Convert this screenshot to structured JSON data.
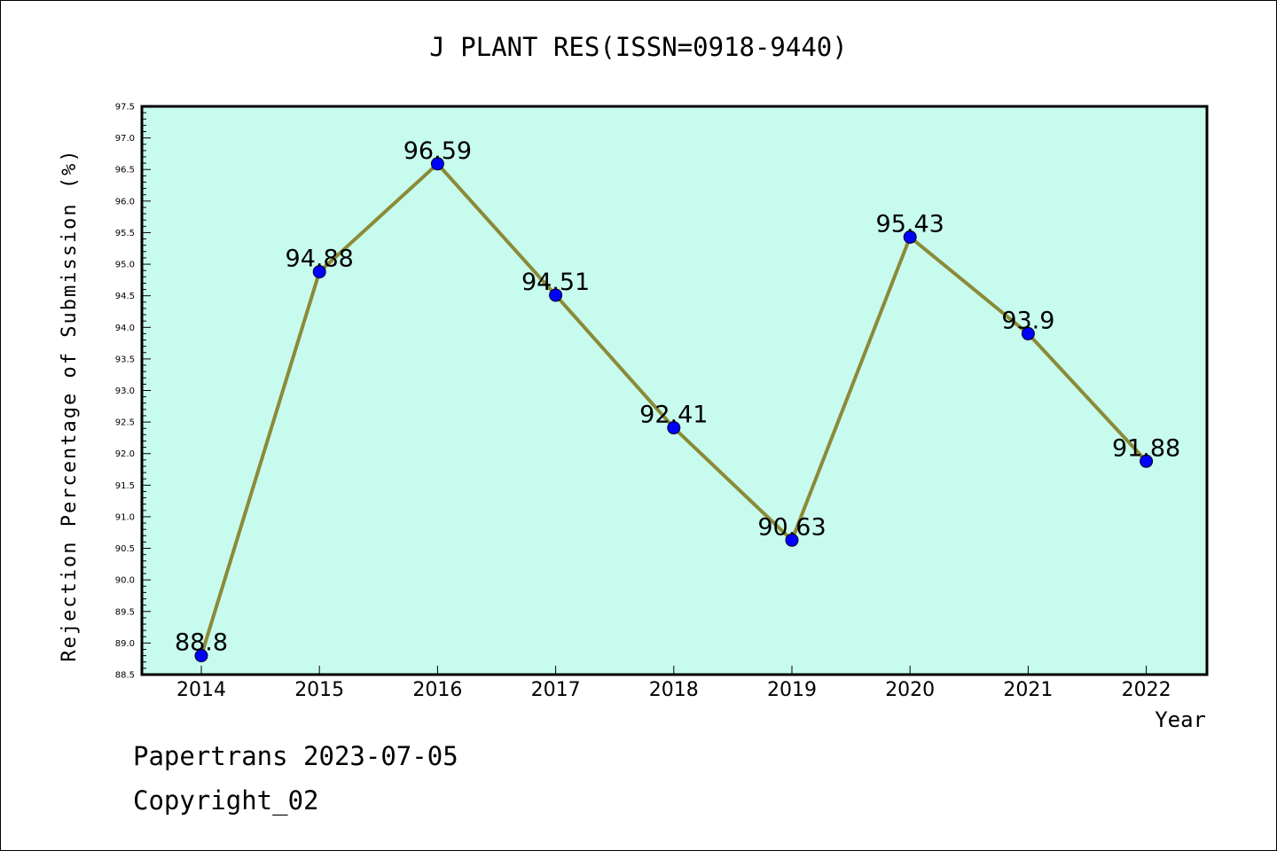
{
  "chart_data": {
    "type": "line",
    "title": "J PLANT RES(ISSN=0918-9440)",
    "xlabel": "Year",
    "ylabel": "Rejection Percentage of Submission (%)",
    "categories": [
      "2014",
      "2015",
      "2016",
      "2017",
      "2018",
      "2019",
      "2020",
      "2021",
      "2022"
    ],
    "series": [
      {
        "values": [
          88.8,
          94.88,
          96.59,
          94.51,
          92.41,
          90.63,
          95.43,
          93.9,
          91.88
        ],
        "labels": [
          "88.8",
          "94.88",
          "96.59",
          "94.51",
          "92.41",
          "90.63",
          "95.43",
          "93.9",
          "91.88"
        ]
      }
    ],
    "ylim": [
      88.5,
      97.5
    ],
    "yticks": [
      "88.5",
      "89.0",
      "89.5",
      "90.0",
      "90.5",
      "91.0",
      "91.5",
      "92.0",
      "92.5",
      "93.0",
      "93.5",
      "94.0",
      "94.5",
      "95.0",
      "95.5",
      "96.0",
      "96.5",
      "97.0",
      "97.5"
    ],
    "grid": false,
    "legend": "none",
    "colors": {
      "plot_background": "#c7fbed",
      "line": "#8b8a38",
      "marker": "#0000ff"
    }
  },
  "footer": {
    "date_text": "Papertrans 2023-07-05",
    "copyright_text": "Copyright_02"
  }
}
